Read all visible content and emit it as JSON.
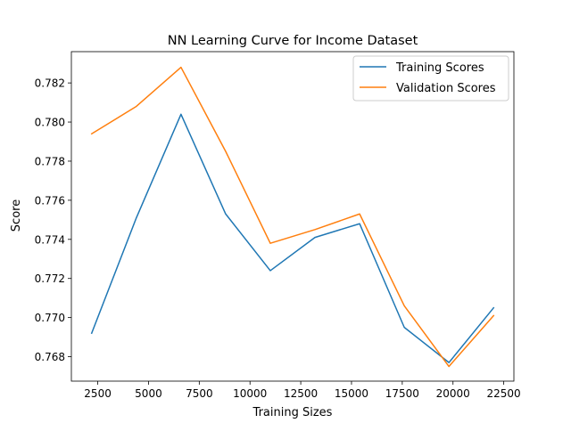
{
  "chart_data": {
    "type": "line",
    "title": "NN Learning Curve for Income Dataset",
    "xlabel": "Training Sizes",
    "ylabel": "Score",
    "xlim": [
      1200,
      23000
    ],
    "ylim": [
      0.76675,
      0.7836
    ],
    "xticks": [
      2500,
      5000,
      7500,
      10000,
      12500,
      15000,
      17500,
      20000,
      22500
    ],
    "xtick_labels": [
      "2500",
      "5000",
      "7500",
      "10000",
      "12500",
      "15000",
      "17500",
      "20000",
      "22500"
    ],
    "yticks": [
      0.768,
      0.77,
      0.772,
      0.774,
      0.776,
      0.778,
      0.78,
      0.782
    ],
    "ytick_labels": [
      "0.768",
      "0.770",
      "0.772",
      "0.774",
      "0.776",
      "0.778",
      "0.780",
      "0.782"
    ],
    "x": [
      2200,
      4400,
      6600,
      8800,
      11000,
      13200,
      15400,
      17600,
      19800,
      22000
    ],
    "series": [
      {
        "name": "Training Scores",
        "color": "#1f77b4",
        "values": [
          0.7692,
          0.7751,
          0.7804,
          0.7753,
          0.7724,
          0.7741,
          0.7748,
          0.7695,
          0.7677,
          0.7705
        ]
      },
      {
        "name": "Validation Scores",
        "color": "#ff7f0e",
        "values": [
          0.7794,
          0.7808,
          0.7828,
          0.7785,
          0.7738,
          0.7745,
          0.7753,
          0.7706,
          0.7675,
          0.7701
        ]
      }
    ],
    "legend": {
      "position": "top-right",
      "entries": [
        "Training Scores",
        "Validation Scores"
      ]
    },
    "grid": false
  }
}
